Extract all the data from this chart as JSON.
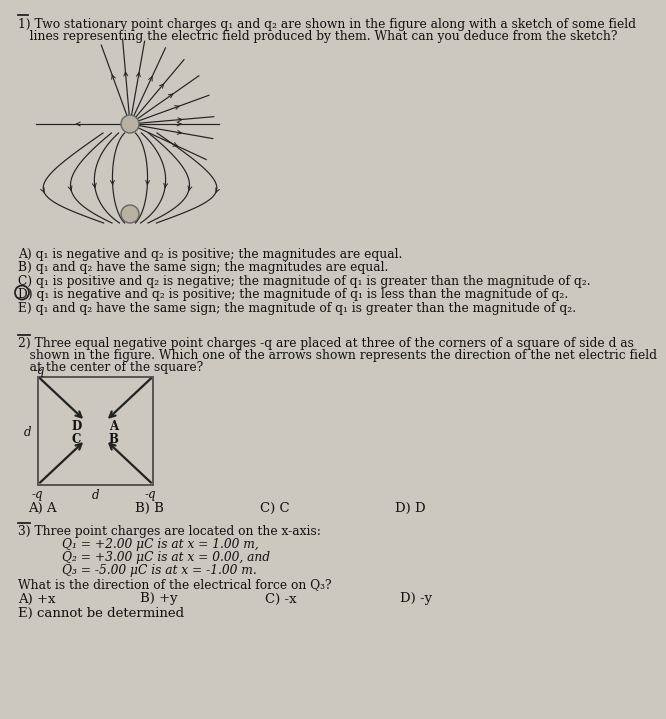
{
  "bg_color": "#ccc8bf",
  "text_color": "#111111",
  "q1_line1": "1) Two stationary point charges q₁ and q₂ are shown in the figure along with a sketch of some field",
  "q1_line2": "   lines representing the electric field produced by them. What can you deduce from the sketch?",
  "answers1": [
    "A) q₁ is negative and q₂ is positive; the magnitudes are equal.",
    "B) q₁ and q₂ have the same sign; the magnitudes are equal.",
    "C) q₁ is positive and q₂ is negative; the magnitude of q₁ is greater than the magnitude of q₂.",
    "D) q₁ is negative and q₂ is positive; the magnitude of q₁ is less than the magnitude of q₂.",
    "E) q₁ and q₂ have the same sign; the magnitude of q₁ is greater than the magnitude of q₂."
  ],
  "q2_line1": "2) Three equal negative point charges -q are placed at three of the corners of a square of side d as",
  "q2_line2": "   shown in the figure. Which one of the arrows shown represents the direction of the net electric field",
  "q2_line3": "   at the center of the square?",
  "answers2": [
    "A) A",
    "B) B",
    "C) C",
    "D) D"
  ],
  "q3_line1": "3) Three point charges are located on the x-axis:",
  "q3_q1": "Q₁ = +2.00 μC is at x = 1.00 m,",
  "q3_q2": "Q₂ = +3.00 μC is at x = 0.00, and",
  "q3_q3": "Q₃ = -5.00 μC is at x = -1.00 m.",
  "q3_question": "What is the direction of the electrical force on Q₃?",
  "answers3": [
    "A) +x",
    "B) +y",
    "C) -x",
    "D) -y"
  ],
  "answer3e": "E) cannot be determined",
  "lc": "#222222",
  "charge_color": "#b8b0a0"
}
